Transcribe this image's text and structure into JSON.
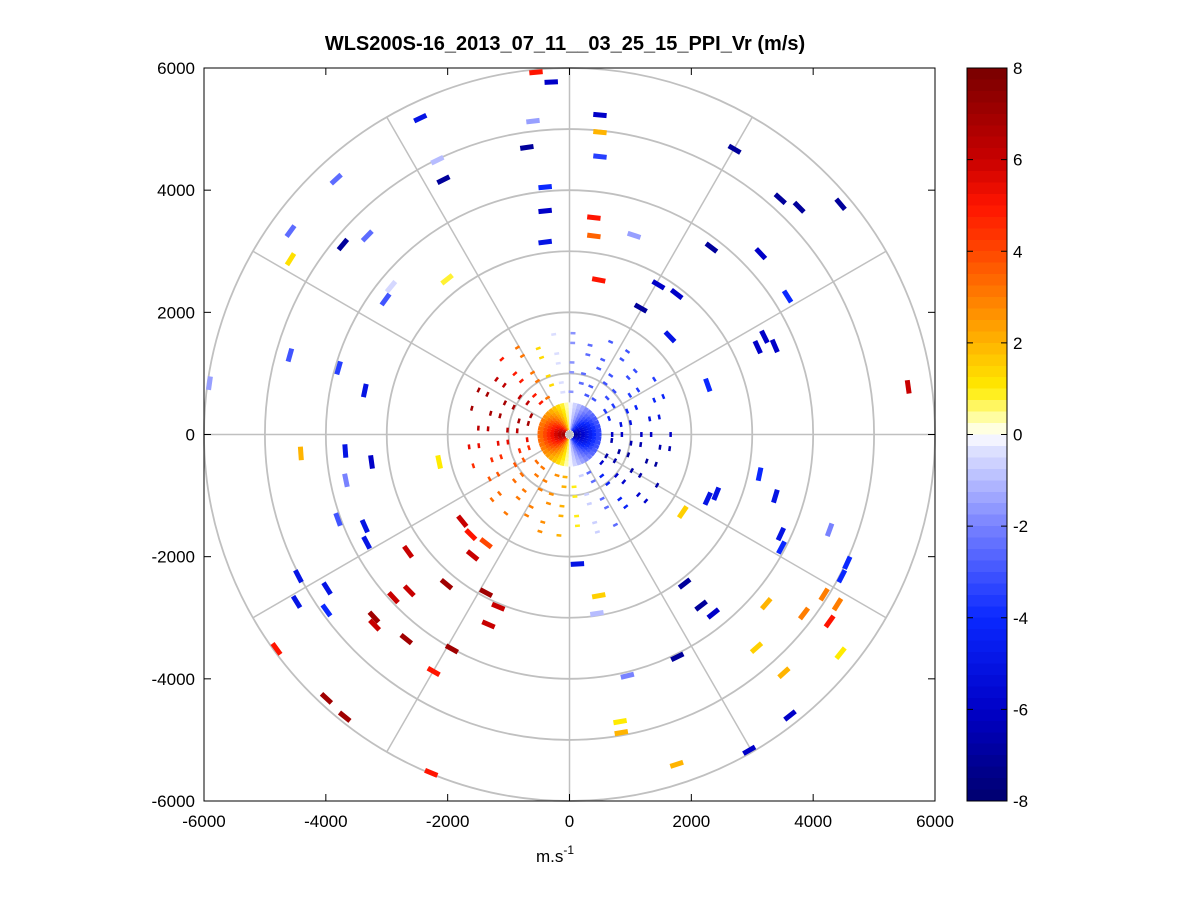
{
  "chart_data": {
    "type": "scatter",
    "subtype": "polar-ppi",
    "title": "WLS200S-16_2013_07_11__03_25_15_PPI_Vr (m/s)",
    "xlabel_base": "m.s",
    "xlabel_exp": "-1",
    "ylabel": "",
    "xlim": [
      -6000,
      6000
    ],
    "ylim": [
      -6000,
      6000
    ],
    "x_ticks": [
      -6000,
      -4000,
      -2000,
      0,
      2000,
      4000,
      6000
    ],
    "y_ticks": [
      6000,
      4000,
      2000,
      0,
      -2000,
      -4000,
      -6000
    ],
    "x_tick_labels": [
      "-6000",
      "-4000",
      "-2000",
      "0",
      "2000",
      "4000",
      "6000"
    ],
    "y_tick_labels": [
      "6000",
      "4000",
      "2000",
      "0",
      "-2000",
      "-4000",
      "-6000"
    ],
    "range_rings": [
      1000,
      2000,
      3000,
      4000,
      5000,
      6000
    ],
    "spoke_angles_deg": [
      0,
      30,
      60,
      90,
      120,
      150,
      180,
      210,
      240,
      270,
      300,
      330
    ],
    "grid": true,
    "colorbar": {
      "min": -8,
      "max": 8,
      "ticks": [
        8,
        6,
        4,
        2,
        0,
        -2,
        -4,
        -6,
        -8
      ],
      "tick_labels": [
        "8",
        "6",
        "4",
        "2",
        "0",
        "-2",
        "-4",
        "-6",
        "-8"
      ],
      "colormap": "blue-white-yellow-red"
    },
    "series": [
      {
        "name": "Vr (m/s)",
        "points": [
          {
            "x": -550,
            "y": 5930,
            "v": 5
          },
          {
            "x": -300,
            "y": 5770,
            "v": -6
          },
          {
            "x": 500,
            "y": 5230,
            "v": -6
          },
          {
            "x": 500,
            "y": 4950,
            "v": 2
          },
          {
            "x": -2450,
            "y": 5180,
            "v": -5
          },
          {
            "x": -600,
            "y": 5130,
            "v": -1.5
          },
          {
            "x": 500,
            "y": 4550,
            "v": -3.5
          },
          {
            "x": -700,
            "y": 4700,
            "v": -7
          },
          {
            "x": -2170,
            "y": 4490,
            "v": -1
          },
          {
            "x": 2710,
            "y": 4670,
            "v": -7
          },
          {
            "x": -2070,
            "y": 4170,
            "v": -7
          },
          {
            "x": -400,
            "y": 4050,
            "v": -4
          },
          {
            "x": -3830,
            "y": 4180,
            "v": -2.5
          },
          {
            "x": 3460,
            "y": 3860,
            "v": -7
          },
          {
            "x": 3770,
            "y": 3720,
            "v": -7
          },
          {
            "x": 4450,
            "y": 3770,
            "v": -7
          },
          {
            "x": -400,
            "y": 3660,
            "v": -6
          },
          {
            "x": 400,
            "y": 3550,
            "v": 5
          },
          {
            "x": 400,
            "y": 3250,
            "v": 3.5
          },
          {
            "x": 1060,
            "y": 3260,
            "v": -1.5
          },
          {
            "x": -4580,
            "y": 3330,
            "v": -2.5
          },
          {
            "x": -3320,
            "y": 3250,
            "v": -2.5
          },
          {
            "x": -3720,
            "y": 3110,
            "v": -7
          },
          {
            "x": -400,
            "y": 3150,
            "v": -5
          },
          {
            "x": 2330,
            "y": 3060,
            "v": -7
          },
          {
            "x": 3140,
            "y": 2960,
            "v": -6
          },
          {
            "x": -4580,
            "y": 2870,
            "v": 1.2
          },
          {
            "x": -2010,
            "y": 2540,
            "v": 0.8
          },
          {
            "x": 480,
            "y": 2530,
            "v": 5
          },
          {
            "x": 1460,
            "y": 2450,
            "v": -6
          },
          {
            "x": 1760,
            "y": 2300,
            "v": -6
          },
          {
            "x": -2930,
            "y": 2420,
            "v": -0.5
          },
          {
            "x": 3580,
            "y": 2260,
            "v": -4
          },
          {
            "x": -3020,
            "y": 2210,
            "v": -3
          },
          {
            "x": 1170,
            "y": 2070,
            "v": -7
          },
          {
            "x": 1650,
            "y": 1600,
            "v": -5
          },
          {
            "x": 3200,
            "y": 1600,
            "v": -6
          },
          {
            "x": 3370,
            "y": 1450,
            "v": -6
          },
          {
            "x": 3090,
            "y": 1430,
            "v": -6
          },
          {
            "x": -4590,
            "y": 1300,
            "v": -3
          },
          {
            "x": -3790,
            "y": 1090,
            "v": -3.5
          },
          {
            "x": 5560,
            "y": 780,
            "v": 6
          },
          {
            "x": -5910,
            "y": 840,
            "v": -1.5
          },
          {
            "x": -3360,
            "y": 720,
            "v": -5
          },
          {
            "x": 2270,
            "y": 810,
            "v": -4
          },
          {
            "x": -4410,
            "y": -310,
            "v": 2
          },
          {
            "x": -3680,
            "y": -270,
            "v": -5
          },
          {
            "x": -3250,
            "y": -450,
            "v": -6
          },
          {
            "x": -2140,
            "y": -450,
            "v": 1
          },
          {
            "x": 3120,
            "y": -650,
            "v": -4
          },
          {
            "x": -3670,
            "y": -750,
            "v": -2
          },
          {
            "x": 2410,
            "y": -970,
            "v": -5
          },
          {
            "x": 3380,
            "y": -1010,
            "v": -5
          },
          {
            "x": 2270,
            "y": -1050,
            "v": -5
          },
          {
            "x": 1860,
            "y": -1270,
            "v": 1.5
          },
          {
            "x": 4270,
            "y": -1560,
            "v": -2
          },
          {
            "x": -3800,
            "y": -1390,
            "v": -3
          },
          {
            "x": -1760,
            "y": -1420,
            "v": 6
          },
          {
            "x": -3360,
            "y": -1500,
            "v": -5
          },
          {
            "x": 3470,
            "y": -1630,
            "v": -5
          },
          {
            "x": -1620,
            "y": -1640,
            "v": 5
          },
          {
            "x": -3330,
            "y": -1770,
            "v": -5
          },
          {
            "x": -1370,
            "y": -1780,
            "v": 4
          },
          {
            "x": -1590,
            "y": -1980,
            "v": 6
          },
          {
            "x": 3480,
            "y": -1850,
            "v": -4
          },
          {
            "x": -2650,
            "y": -1920,
            "v": 6
          },
          {
            "x": 4560,
            "y": -2100,
            "v": -4
          },
          {
            "x": 130,
            "y": -2120,
            "v": -5
          },
          {
            "x": 4470,
            "y": -2320,
            "v": -4
          },
          {
            "x": -4450,
            "y": -2320,
            "v": -5
          },
          {
            "x": -3980,
            "y": -2520,
            "v": -5
          },
          {
            "x": -2630,
            "y": -2560,
            "v": 6
          },
          {
            "x": -2020,
            "y": -2450,
            "v": 7
          },
          {
            "x": -2890,
            "y": -2670,
            "v": 6
          },
          {
            "x": -4480,
            "y": -2740,
            "v": -5
          },
          {
            "x": -1370,
            "y": -2590,
            "v": 7
          },
          {
            "x": 1890,
            "y": -2440,
            "v": -7
          },
          {
            "x": 4180,
            "y": -2620,
            "v": 3
          },
          {
            "x": 3230,
            "y": -2770,
            "v": 2
          },
          {
            "x": 4400,
            "y": -2780,
            "v": 3
          },
          {
            "x": -3990,
            "y": -2880,
            "v": -4
          },
          {
            "x": 3850,
            "y": -2930,
            "v": 3
          },
          {
            "x": -3210,
            "y": -2990,
            "v": 7
          },
          {
            "x": 480,
            "y": -2640,
            "v": 1.5
          },
          {
            "x": -1170,
            "y": -2820,
            "v": 6
          },
          {
            "x": 2160,
            "y": -2800,
            "v": -7
          },
          {
            "x": 450,
            "y": -2930,
            "v": -1
          },
          {
            "x": 2360,
            "y": -2930,
            "v": -6
          },
          {
            "x": -3200,
            "y": -3120,
            "v": 6
          },
          {
            "x": 4270,
            "y": -3060,
            "v": 5
          },
          {
            "x": -2680,
            "y": -3350,
            "v": 7
          },
          {
            "x": -1330,
            "y": -3110,
            "v": 6
          },
          {
            "x": -1930,
            "y": -3510,
            "v": 7
          },
          {
            "x": -4810,
            "y": -3510,
            "v": 5
          },
          {
            "x": 3070,
            "y": -3490,
            "v": 1.5
          },
          {
            "x": 1770,
            "y": -3640,
            "v": -7
          },
          {
            "x": 4450,
            "y": -3580,
            "v": 1
          },
          {
            "x": -2230,
            "y": -3880,
            "v": 5
          },
          {
            "x": 3520,
            "y": -3900,
            "v": 2
          },
          {
            "x": 950,
            "y": -3950,
            "v": -2
          },
          {
            "x": -3990,
            "y": -4320,
            "v": 7
          },
          {
            "x": 3620,
            "y": -4600,
            "v": -6
          },
          {
            "x": -3690,
            "y": -4620,
            "v": 7
          },
          {
            "x": 830,
            "y": -4700,
            "v": 1
          },
          {
            "x": 850,
            "y": -4880,
            "v": 2
          },
          {
            "x": 2950,
            "y": -5170,
            "v": -6
          },
          {
            "x": 1760,
            "y": -5400,
            "v": 2
          },
          {
            "x": -2270,
            "y": -5540,
            "v": 5
          }
        ]
      }
    ]
  }
}
